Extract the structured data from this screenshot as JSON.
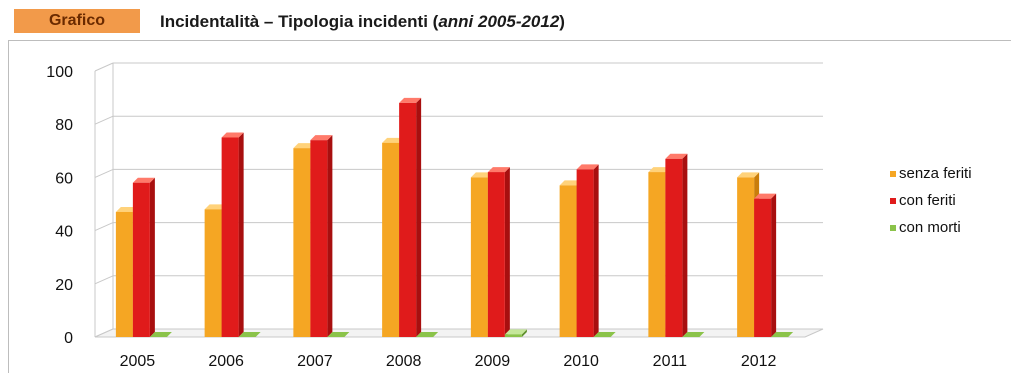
{
  "header": {
    "tag": "Grafico",
    "title_main": "Incidentalità – Tipologia incidenti (",
    "title_italic": "anni 2005-2012",
    "title_end": ")"
  },
  "colors": {
    "senza": "#f5a623",
    "con": "#e01b1b",
    "morti": "#8bc34a"
  },
  "chart_data": {
    "type": "bar",
    "categories": [
      "2005",
      "2006",
      "2007",
      "2008",
      "2009",
      "2010",
      "2011",
      "2012"
    ],
    "series": [
      {
        "name": "senza feriti",
        "values": [
          47,
          48,
          71,
          73,
          60,
          57,
          62,
          60
        ]
      },
      {
        "name": "con feriti",
        "values": [
          58,
          75,
          74,
          88,
          62,
          63,
          67,
          52
        ]
      },
      {
        "name": "con morti",
        "values": [
          0,
          0,
          0,
          0,
          1,
          0,
          0,
          0
        ]
      }
    ],
    "ylim": [
      0,
      100
    ],
    "yticks": [
      "0",
      "20",
      "40",
      "60",
      "80",
      "100"
    ],
    "legend_position": "right",
    "grid": true
  },
  "legend": [
    {
      "label": "senza feriti",
      "color": "#f5a623"
    },
    {
      "label": "con feriti",
      "color": "#e01b1b"
    },
    {
      "label": "con morti",
      "color": "#8bc34a"
    }
  ]
}
